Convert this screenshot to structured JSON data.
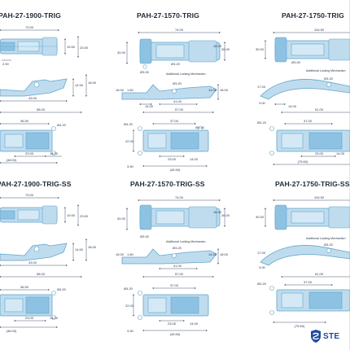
{
  "titles": {
    "t1": "PAH-27-1900-TRIG",
    "t2": "PAH-27-1570-TRIG",
    "t3": "PAH-27-1750-TRIG",
    "t4": "PAH-27-1900-TRIG-SS",
    "t5": "PAH-27-1570-TRIG-SS",
    "t6": "PAH-27-1750-TRIG-SS"
  },
  "dims": {
    "c1": {
      "top_w": "73.00",
      "top_r1": "19.50",
      "top_r2": "23.50",
      "top_l": "2.00",
      "side_h1": "14.50",
      "side_h2": "18.00",
      "side_b1": "43.00",
      "side_b2": "58.00",
      "bot_w": "36.50",
      "bot_hole": "Ø4.20",
      "bot_b1": "23.00",
      "bot_b2": "14.00",
      "bot_b3": "(48.00)"
    },
    "c2": {
      "top_w": "74.00",
      "top_l": "30.00",
      "top_r1": "16.00",
      "top_r2": "26.00",
      "top_hole1": "Ø3.00",
      "top_hole2": "Ø3.20",
      "note": "Additional Locking Mechanism",
      "side_l1": "16.00",
      "side_l2": "1.60",
      "side_hole": "Ø3.20",
      "side_r1": "14.00",
      "side_r2": "18.00",
      "side_b1": "14.00",
      "side_b2": "41.00",
      "side_b3": "57.00",
      "bot_hole1": "Ø4.20",
      "bot_w": "37.00",
      "bot_hole2": "Ø4.20",
      "bot_l": "22.00",
      "bot_b1": "23.00",
      "bot_b2": "14.00",
      "bot_b3": "3.90",
      "bot_b4": "(45.50)"
    },
    "c3": {
      "top_w": "104.50",
      "top_l": "30.00",
      "top_hole": "Ø3.00",
      "note": "Additional Locking Mechanism",
      "side_l1": "17.00",
      "side_l2": "3.00",
      "side_hole": "Ø3.20",
      "side_b1": "14.00",
      "side_b2": "61.00",
      "bot_hole": "Ø4.20",
      "bot_w": "37.00",
      "bot_b1": "23.00",
      "bot_b2": "14.00",
      "bot_b3": "(75.60)"
    }
  },
  "logo": {
    "text": "STE"
  },
  "colors": {
    "part_fill": "#bfdcee",
    "part_edge": "#5fa4cc",
    "part_dark": "#8ec2e2",
    "dim_line": "#48576a",
    "background": "#ffffff",
    "logo": "#1e4aa0"
  }
}
